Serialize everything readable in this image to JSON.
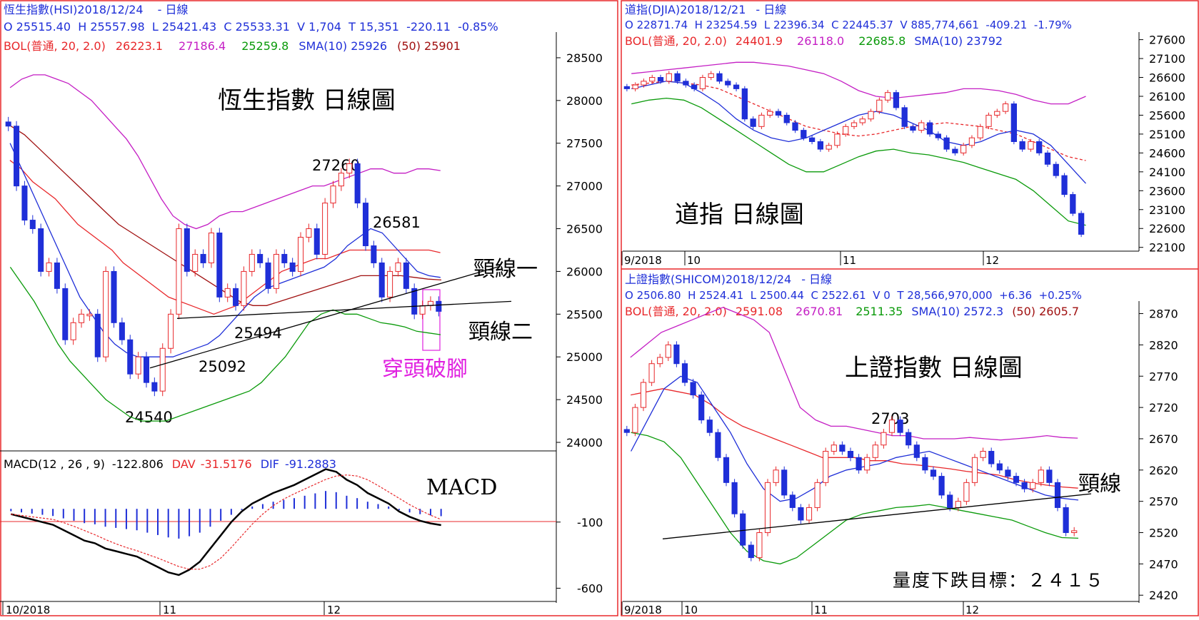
{
  "colors": {
    "up": "#e8282b",
    "down": "#1f2fd8",
    "bb_upper": "#c41ec4",
    "bb_mid": "#e8282b",
    "bb_lower": "#0a9a0a",
    "sma10": "#1f2fd8",
    "sma50": "#a01010",
    "neck": "#000000",
    "annot_pink": "#e020e0",
    "header_blue": "#1f2fd8",
    "header_red": "#e8282b"
  },
  "hsi": {
    "header_line1_name": "恆生指數(HSI)2018/12/24",
    "header_line1_period": "- 日線",
    "header_line2": "O 25515.40  H 25557.98  L 25421.43  C 25533.31  V 1,704  T 15,351  -220.11  -0.85%",
    "header_line3": {
      "bol": "BOL(普通, 20, 2.0)",
      "mid": "26223.1",
      "upper": "27186.4",
      "lower": "25259.8",
      "sma10": "SMA(10) 25926",
      "sma50": "(50) 25901"
    },
    "title": "恆生指數 日線圖",
    "annotations": {
      "high": "27260",
      "a2": "26581",
      "a3": "25494",
      "a4": "25092",
      "low": "24540",
      "neck1": "頸線一",
      "neck2": "頸線二",
      "breakout": "穿頭破腳"
    },
    "y_ticks": [
      "28500",
      "28000",
      "27500",
      "27000",
      "26500",
      "26000",
      "25500",
      "25000",
      "24500",
      "24000"
    ],
    "macd_header": {
      "label": "MACD(12 , 26 , 9)",
      "value": "-122.806",
      "dav": "DAV",
      "dav_val": "-31.5176",
      "dif": "DIF",
      "dif_val": "-91.2883"
    },
    "macd_title": "MACD",
    "macd_ticks": [
      "-100",
      "-600"
    ],
    "x_labels": [
      "10/2018",
      "11",
      "12"
    ]
  },
  "djia": {
    "header_line1_name": "道指(DJIA)2018/12/21",
    "header_line1_period": "- 日線",
    "header_line2": "O 22871.74  H 23254.59  L 22396.34  C 22445.37  V 885,774,661  -409.21  -1.79%",
    "header_line3": {
      "bol": "BOL(普通, 20, 2.0)",
      "mid": "24401.9",
      "upper": "26118.0",
      "lower": "22685.8",
      "sma10": "SMA(10) 23792"
    },
    "title": "道指 日線圖",
    "y_ticks": [
      "27600",
      "27100",
      "26600",
      "26100",
      "25600",
      "25100",
      "24600",
      "24100",
      "23600",
      "23100",
      "22600",
      "22100"
    ],
    "x_labels": [
      "9/2018",
      "10",
      "11",
      "12"
    ]
  },
  "sse": {
    "header_line1_name": "上證指數(SHICOM)2018/12/24",
    "header_line1_period": "- 日線",
    "header_line2": "O 2506.80  H 2524.41  L 2500.44  C 2522.61  V 0  T 28,566,970,000  +6.36  +0.25%",
    "header_line3": {
      "bol": "BOL(普通, 20, 2.0)",
      "mid": "2591.08",
      "upper": "2670.81",
      "lower": "2511.35",
      "sma10": "SMA(10) 2572.3",
      "sma50": "(50) 2605.7"
    },
    "title": "上證指數  日線圖",
    "annotations": {
      "high": "2703",
      "neck": "頸線",
      "target": "量度下跌目標：２４１５"
    },
    "y_ticks": [
      "2870",
      "2820",
      "2770",
      "2720",
      "2670",
      "2620",
      "2570",
      "2520",
      "2470",
      "2420"
    ],
    "x_labels": [
      "9/2018",
      "10",
      "11",
      "12"
    ]
  },
  "chart_data": [
    {
      "type": "candlestick",
      "title": "恆生指數 日線圖",
      "ylim": [
        23900,
        28800
      ],
      "closes": [
        27700,
        27000,
        26600,
        26500,
        26000,
        26100,
        25800,
        25200,
        25400,
        25500,
        25500,
        25000,
        26000,
        25400,
        25200,
        24800,
        25000,
        24700,
        24600,
        25100,
        25500,
        26500,
        26000,
        26200,
        26100,
        26450,
        25700,
        25800,
        25600,
        26000,
        26200,
        26100,
        25800,
        26200,
        26100,
        26000,
        26400,
        26500,
        26200,
        26800,
        27000,
        27150,
        27260,
        26800,
        26300,
        26100,
        25700,
        26000,
        26100,
        25800,
        25500,
        25600,
        25650,
        25533
      ],
      "bb_upper": [
        28150,
        28250,
        28300,
        28300,
        28250,
        28200,
        28100,
        28000,
        27850,
        27700,
        27550,
        27350,
        27100,
        26850,
        26650,
        26550,
        26500,
        26550,
        26650,
        26700,
        26700,
        26750,
        26800,
        26850,
        26900,
        26950,
        27000,
        27000,
        27050,
        27100,
        27150,
        27200,
        27200,
        27150,
        27150,
        27200,
        27200,
        27180
      ],
      "bb_mid": [
        27300,
        27200,
        27050,
        26950,
        26850,
        26700,
        26550,
        26450,
        26350,
        26250,
        26100,
        26000,
        25900,
        25800,
        25700,
        25650,
        25600,
        25550,
        25500,
        25550,
        25600,
        25700,
        25800,
        25900,
        26000,
        26050,
        26100,
        26150,
        26150,
        26200,
        26250,
        26250,
        26250,
        26250,
        26250,
        26250,
        26250,
        26250,
        26220
      ],
      "bb_lower": [
        26050,
        25850,
        25650,
        25400,
        25150,
        24950,
        24800,
        24650,
        24500,
        24400,
        24300,
        24250,
        24250,
        24250,
        24300,
        24350,
        24400,
        24450,
        24500,
        24550,
        24600,
        24700,
        24850,
        25000,
        25200,
        25400,
        25500,
        25550,
        25500,
        25500,
        25450,
        25400,
        25380,
        25350,
        25300,
        25280,
        25260
      ],
      "sma10": [
        27500,
        27200,
        26900,
        26600,
        26300,
        26000,
        25700,
        25500,
        25300,
        25150,
        25050,
        25000,
        25000,
        25000,
        25000,
        25050,
        25100,
        25150,
        25250,
        25400,
        25550,
        25700,
        25800,
        25850,
        25900,
        25950,
        26000,
        26050,
        26150,
        26300,
        26400,
        26500,
        26450,
        26300,
        26150,
        26000,
        25950,
        25930
      ],
      "sma50": [
        27700,
        27600,
        27450,
        27300,
        27150,
        27000,
        26850,
        26700,
        26550,
        26450,
        26350,
        26250,
        26150,
        26050,
        25950,
        25850,
        25750,
        25650,
        25600,
        25600,
        25650,
        25700,
        25750,
        25800,
        25850,
        25900,
        25950,
        25950,
        25950,
        25950,
        25930,
        25910,
        25900
      ],
      "macd": [
        -40,
        -60,
        -80,
        -100,
        -120,
        -160,
        -200,
        -240,
        -260,
        -300,
        -320,
        -340,
        -360,
        -400,
        -440,
        -480,
        -500,
        -460,
        -400,
        -300,
        -200,
        -100,
        -20,
        40,
        80,
        120,
        150,
        180,
        220,
        260,
        300,
        280,
        220,
        180,
        120,
        80,
        40,
        -20,
        -60,
        -90,
        -110,
        -123
      ],
      "neckline_1": [
        [
          24540,
          25000
        ],
        [
          25650,
          26000
        ]
      ],
      "neckline_2": [
        [
          25494,
          25500
        ],
        [
          25600,
          25600
        ]
      ]
    },
    {
      "type": "candlestick",
      "title": "道指 日線圖",
      "ylim": [
        22000,
        27800
      ],
      "closes": [
        26300,
        26400,
        26500,
        26600,
        26500,
        26700,
        26500,
        26400,
        26300,
        26600,
        26700,
        26500,
        26400,
        26300,
        25500,
        25300,
        25600,
        25700,
        25600,
        25400,
        25200,
        25000,
        24900,
        24700,
        24800,
        25100,
        25300,
        25400,
        25500,
        25700,
        26000,
        26200,
        25800,
        25300,
        25200,
        25400,
        25100,
        25000,
        24700,
        24600,
        24800,
        25000,
        25300,
        25600,
        25700,
        25900,
        24900,
        24700,
        24900,
        24600,
        24300,
        24000,
        23500,
        23000,
        22445
      ],
      "bb_upper": [
        26700,
        26750,
        26800,
        26850,
        26900,
        26950,
        27000,
        27000,
        26950,
        26900,
        26800,
        26700,
        26500,
        26250,
        26100,
        26050,
        26100,
        26150,
        26200,
        26300,
        26300,
        26250,
        26150,
        26000,
        25900,
        25900,
        26100
      ],
      "bb_mid": [
        26400,
        26450,
        26500,
        26450,
        26400,
        26300,
        26100,
        25900,
        25700,
        25500,
        25300,
        25200,
        25100,
        25050,
        25100,
        25200,
        25300,
        25350,
        25400,
        25350,
        25300,
        25200,
        25100,
        24900,
        24700,
        24500,
        24400
      ],
      "bb_lower": [
        25900,
        26000,
        26050,
        26000,
        25800,
        25500,
        25200,
        24900,
        24600,
        24300,
        24100,
        24100,
        24300,
        24500,
        24650,
        24700,
        24600,
        24550,
        24450,
        24350,
        24200,
        24050,
        23900,
        23600,
        23200,
        22800,
        22686
      ],
      "sma10": [
        26300,
        26400,
        26500,
        26450,
        26200,
        25900,
        25500,
        25200,
        25000,
        24900,
        25000,
        25200,
        25400,
        25600,
        25700,
        25600,
        25400,
        25200,
        24900,
        24800,
        24900,
        25100,
        25200,
        25100,
        24800,
        24300,
        23792
      ]
    },
    {
      "type": "candlestick",
      "title": "上證指數  日線圖",
      "ylim": [
        2410,
        2890
      ],
      "closes": [
        2680,
        2720,
        2760,
        2790,
        2800,
        2820,
        2790,
        2760,
        2740,
        2700,
        2680,
        2640,
        2600,
        2550,
        2500,
        2480,
        2520,
        2600,
        2620,
        2580,
        2560,
        2540,
        2560,
        2600,
        2650,
        2660,
        2650,
        2640,
        2620,
        2640,
        2660,
        2680,
        2700,
        2680,
        2660,
        2640,
        2620,
        2610,
        2580,
        2560,
        2570,
        2600,
        2640,
        2650,
        2630,
        2620,
        2610,
        2600,
        2590,
        2600,
        2620,
        2600,
        2560,
        2520,
        2523
      ],
      "bb_upper": [
        2800,
        2820,
        2840,
        2850,
        2860,
        2870,
        2880,
        2870,
        2860,
        2840,
        2780,
        2720,
        2700,
        2690,
        2690,
        2685,
        2680,
        2675,
        2675,
        2670,
        2670,
        2670,
        2672,
        2670,
        2668,
        2670,
        2672,
        2675,
        2672,
        2671
      ],
      "bb_mid": [
        2740,
        2745,
        2750,
        2745,
        2740,
        2725,
        2705,
        2690,
        2680,
        2670,
        2660,
        2650,
        2640,
        2640,
        2640,
        2635,
        2635,
        2630,
        2628,
        2625,
        2622,
        2618,
        2615,
        2612,
        2605,
        2600,
        2596,
        2593,
        2591
      ],
      "bb_lower": [
        2680,
        2675,
        2665,
        2640,
        2600,
        2560,
        2520,
        2490,
        2475,
        2470,
        2480,
        2500,
        2520,
        2540,
        2550,
        2555,
        2560,
        2562,
        2565,
        2560,
        2555,
        2550,
        2545,
        2540,
        2530,
        2520,
        2512,
        2511
      ],
      "sma10": [
        2650,
        2700,
        2750,
        2770,
        2760,
        2720,
        2680,
        2630,
        2590,
        2570,
        2575,
        2590,
        2610,
        2620,
        2625,
        2630,
        2640,
        2645,
        2650,
        2640,
        2630,
        2620,
        2610,
        2600,
        2590,
        2580,
        2575,
        2572
      ],
      "neckline": [
        [
          2510,
          2580
        ],
        [
          2610,
          2580
        ]
      ],
      "target": 2415
    }
  ]
}
